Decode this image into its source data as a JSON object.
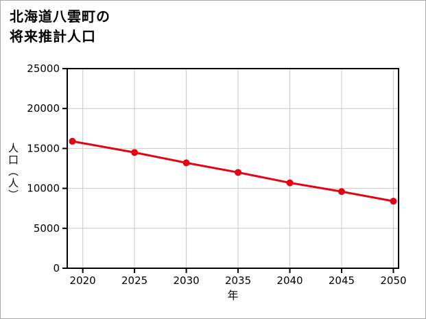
{
  "page": {
    "background": "#ffffff",
    "border_color": "#a8a8a8"
  },
  "title": {
    "line1": "北海道八雲町の",
    "line2": "将来推計人口"
  },
  "chart_data": {
    "type": "line",
    "title": "北海道八雲町の将来推計人口",
    "xlabel": "年",
    "ylabel": "人口（人）",
    "x": [
      2019,
      2025,
      2030,
      2035,
      2040,
      2045,
      2050
    ],
    "series": [
      {
        "name": "将来推計人口",
        "values": [
          15900,
          14500,
          13200,
          12000,
          10700,
          9600,
          8400
        ]
      }
    ],
    "xlim": [
      2018.5,
      2050.5
    ],
    "xticks": [
      2020,
      2025,
      2030,
      2035,
      2040,
      2045,
      2050
    ],
    "ylim": [
      0,
      25000
    ],
    "yticks": [
      0,
      5000,
      10000,
      15000,
      20000,
      25000
    ],
    "grid": true,
    "legend_position": "none",
    "line_color": "#e60012",
    "marker_color": "#e60012",
    "grid_color": "#c8c8c8",
    "axis_color": "#000000",
    "tick_font_size": 15
  }
}
